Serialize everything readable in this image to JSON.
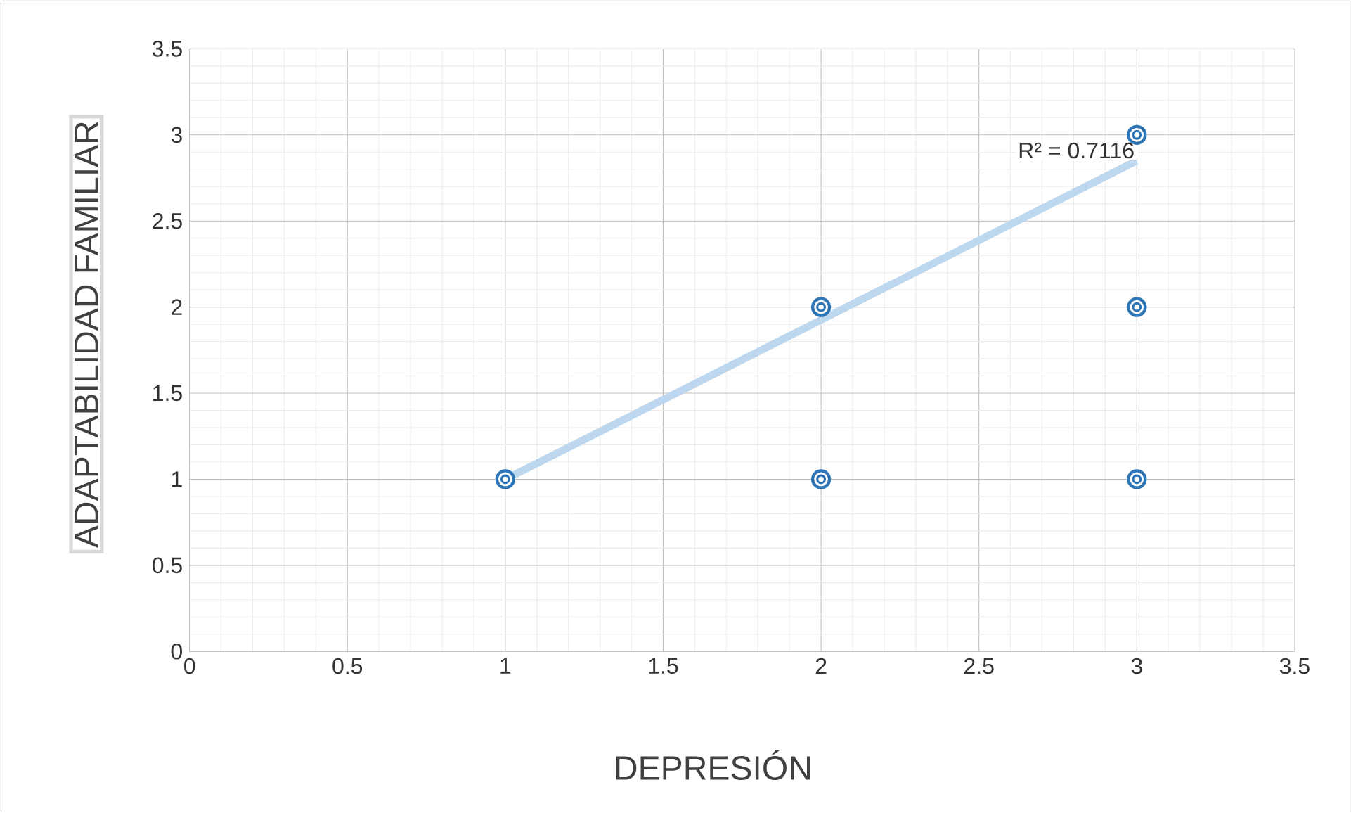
{
  "chart_data": {
    "type": "scatter",
    "xlabel": "DEPRESIÓN",
    "ylabel": "ADAPTABILIDAD FAMILIAR",
    "xlim": [
      0,
      3.5
    ],
    "xticks": [
      0,
      0.5,
      1,
      1.5,
      2,
      2.5,
      3,
      3.5
    ],
    "ylim": [
      0,
      3.5
    ],
    "yticks": [
      0,
      0.5,
      1,
      1.5,
      2,
      2.5,
      3,
      3.5
    ],
    "grid": true,
    "marker": "circle",
    "annotations": [
      "R² = 0.7116"
    ],
    "series": [
      {
        "color": "#2e75b6",
        "x": [
          1,
          2,
          2,
          3,
          3,
          3
        ],
        "values": [
          1,
          2,
          1,
          3,
          2,
          1
        ]
      },
      {
        "type": "line",
        "color": "#bdd7ee",
        "x": [
          1,
          3
        ],
        "values": [
          1.0,
          2.85
        ]
      }
    ]
  }
}
